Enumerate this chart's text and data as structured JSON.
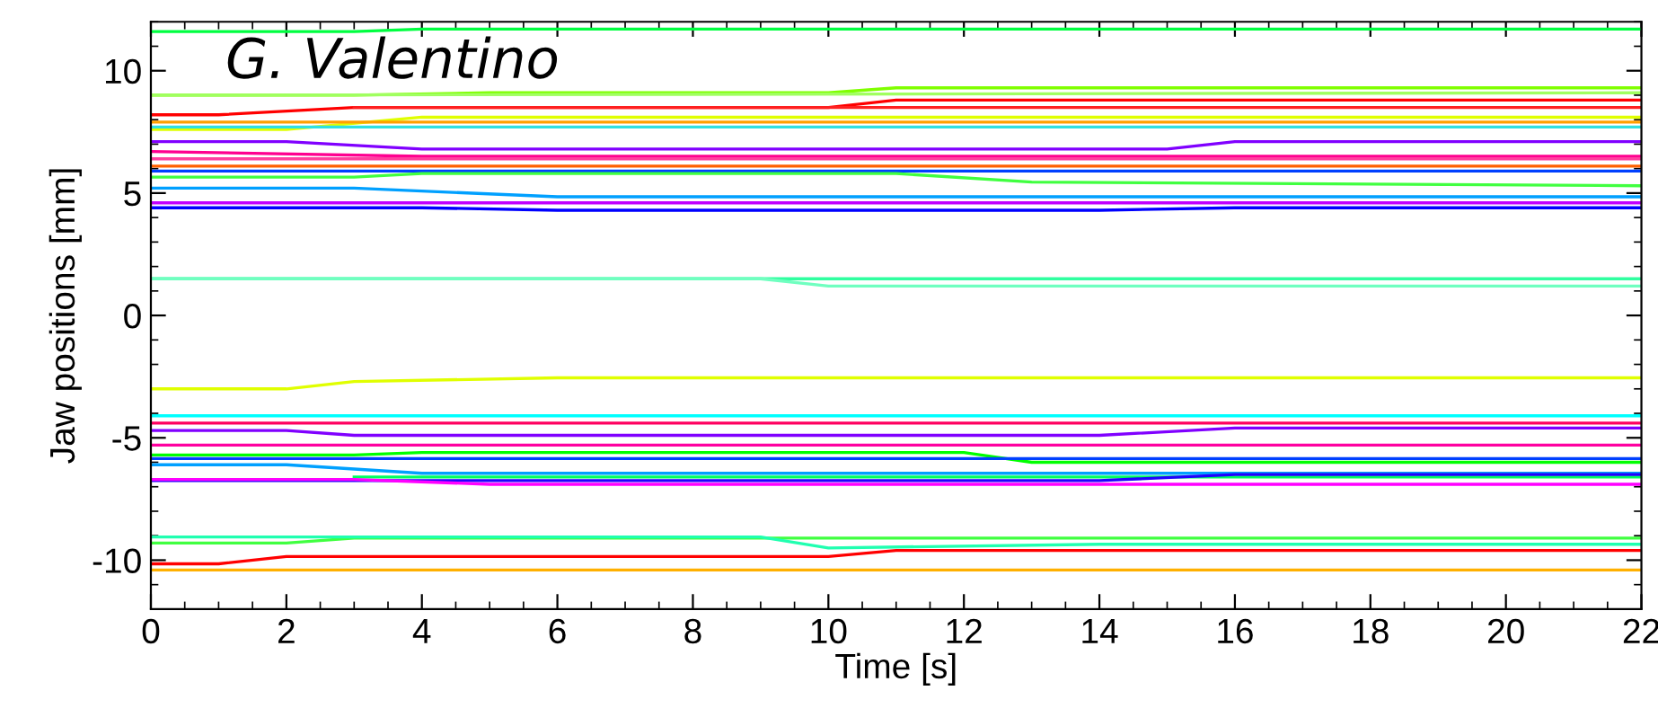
{
  "chart_data": {
    "type": "line",
    "xlabel": "Time [s]",
    "ylabel": "Jaw positions [mm]",
    "annotations": [
      "G. Valentino"
    ],
    "xlim": [
      0,
      22
    ],
    "ylim": [
      -12,
      12
    ],
    "xticks": [
      0,
      2,
      4,
      6,
      8,
      10,
      12,
      14,
      16,
      18,
      20,
      22
    ],
    "yticks": [
      -10,
      -5,
      0,
      5,
      10
    ],
    "grid": false,
    "marker": "none",
    "line_style": "solid",
    "series": [
      {
        "color": "#00ff40",
        "x": [
          0,
          3,
          4,
          22
        ],
        "values": [
          11.6,
          11.6,
          11.7,
          11.7
        ]
      },
      {
        "color": "#80ff00",
        "x": [
          0,
          3,
          5,
          10,
          11,
          22
        ],
        "values": [
          9.0,
          9.0,
          9.1,
          9.1,
          9.3,
          9.3
        ]
      },
      {
        "color": "#a0ff60",
        "x": [
          0,
          22
        ],
        "values": [
          9.0,
          9.1
        ]
      },
      {
        "color": "#ff0000",
        "x": [
          0,
          1,
          3,
          10,
          11,
          22
        ],
        "values": [
          8.2,
          8.2,
          8.5,
          8.5,
          8.8,
          8.8
        ]
      },
      {
        "color": "#ff2020",
        "x": [
          3,
          22
        ],
        "values": [
          8.5,
          8.5
        ]
      },
      {
        "color": "#e0ff00",
        "x": [
          0,
          2,
          4,
          22
        ],
        "values": [
          7.6,
          7.6,
          8.1,
          8.1
        ]
      },
      {
        "color": "#ffa000",
        "x": [
          0,
          22
        ],
        "values": [
          7.9,
          7.9
        ]
      },
      {
        "color": "#30e0e0",
        "x": [
          0,
          22
        ],
        "values": [
          7.7,
          7.7
        ]
      },
      {
        "color": "#8000ff",
        "x": [
          0,
          2,
          4,
          15,
          16,
          22
        ],
        "values": [
          7.1,
          7.1,
          6.8,
          6.8,
          7.1,
          7.1
        ]
      },
      {
        "color": "#ff0090",
        "x": [
          0,
          4,
          22
        ],
        "values": [
          6.7,
          6.5,
          6.5
        ]
      },
      {
        "color": "#ff40a0",
        "x": [
          0,
          22
        ],
        "values": [
          6.4,
          6.4
        ]
      },
      {
        "color": "#ff6000",
        "x": [
          0,
          22
        ],
        "values": [
          6.1,
          6.1
        ]
      },
      {
        "color": "#0040ff",
        "x": [
          0,
          22
        ],
        "values": [
          5.9,
          5.9
        ]
      },
      {
        "color": "#40ff40",
        "x": [
          0,
          3,
          4,
          11,
          13,
          22
        ],
        "values": [
          5.65,
          5.65,
          5.8,
          5.8,
          5.45,
          5.3
        ]
      },
      {
        "color": "#00a0ff",
        "x": [
          0,
          3,
          6,
          22
        ],
        "values": [
          5.2,
          5.2,
          4.85,
          4.85
        ]
      },
      {
        "color": "#c000ff",
        "x": [
          0,
          22
        ],
        "values": [
          4.6,
          4.6
        ]
      },
      {
        "color": "#0000ff",
        "x": [
          0,
          4,
          6,
          14,
          16,
          22
        ],
        "values": [
          4.4,
          4.4,
          4.3,
          4.3,
          4.4,
          4.4
        ]
      },
      {
        "color": "#30ffa0",
        "x": [
          0,
          22
        ],
        "values": [
          1.5,
          1.5
        ]
      },
      {
        "color": "#70ffc0",
        "x": [
          0,
          9,
          10,
          22
        ],
        "values": [
          1.5,
          1.5,
          1.2,
          1.2
        ]
      },
      {
        "color": "#e0ff00",
        "x": [
          0,
          2,
          3,
          6,
          22
        ],
        "values": [
          -3.0,
          -3.0,
          -2.7,
          -2.55,
          -2.55
        ]
      },
      {
        "color": "#00ffff",
        "x": [
          0,
          22
        ],
        "values": [
          -4.1,
          -4.1
        ]
      },
      {
        "color": "#ff0060",
        "x": [
          0,
          22
        ],
        "values": [
          -4.4,
          -4.4
        ]
      },
      {
        "color": "#8000ff",
        "x": [
          0,
          2,
          3,
          14,
          16,
          22
        ],
        "values": [
          -4.7,
          -4.7,
          -4.9,
          -4.9,
          -4.6,
          -4.6
        ]
      },
      {
        "color": "#ff00a0",
        "x": [
          0,
          22
        ],
        "values": [
          -5.3,
          -5.3
        ]
      },
      {
        "color": "#00ff00",
        "x": [
          0,
          3,
          4,
          12,
          13,
          22
        ],
        "values": [
          -5.7,
          -5.7,
          -5.6,
          -5.6,
          -6.0,
          -6.0
        ]
      },
      {
        "color": "#0040ff",
        "x": [
          0,
          22
        ],
        "values": [
          -5.85,
          -5.85
        ]
      },
      {
        "color": "#00a0ff",
        "x": [
          0,
          2,
          4,
          22
        ],
        "values": [
          -6.1,
          -6.1,
          -6.45,
          -6.45
        ]
      },
      {
        "color": "#00ff60",
        "x": [
          3,
          22
        ],
        "values": [
          -6.6,
          -6.6
        ]
      },
      {
        "color": "#2000ff",
        "x": [
          0,
          14,
          16,
          22
        ],
        "values": [
          -6.75,
          -6.75,
          -6.5,
          -6.5
        ]
      },
      {
        "color": "#ff00ff",
        "x": [
          0,
          3,
          5,
          22
        ],
        "values": [
          -6.7,
          -6.7,
          -6.9,
          -6.9
        ]
      },
      {
        "color": "#40ff40",
        "x": [
          0,
          2,
          3,
          22
        ],
        "values": [
          -9.3,
          -9.3,
          -9.1,
          -9.1
        ]
      },
      {
        "color": "#20ffb0",
        "x": [
          0,
          9,
          10,
          14,
          22
        ],
        "values": [
          -9.05,
          -9.05,
          -9.5,
          -9.35,
          -9.35
        ]
      },
      {
        "color": "#ff0000",
        "x": [
          0,
          1,
          2,
          10,
          11,
          22
        ],
        "values": [
          -10.15,
          -10.15,
          -9.85,
          -9.85,
          -9.6,
          -9.6
        ]
      },
      {
        "color": "#ffb000",
        "x": [
          0,
          22
        ],
        "values": [
          -10.4,
          -10.4
        ]
      }
    ]
  }
}
